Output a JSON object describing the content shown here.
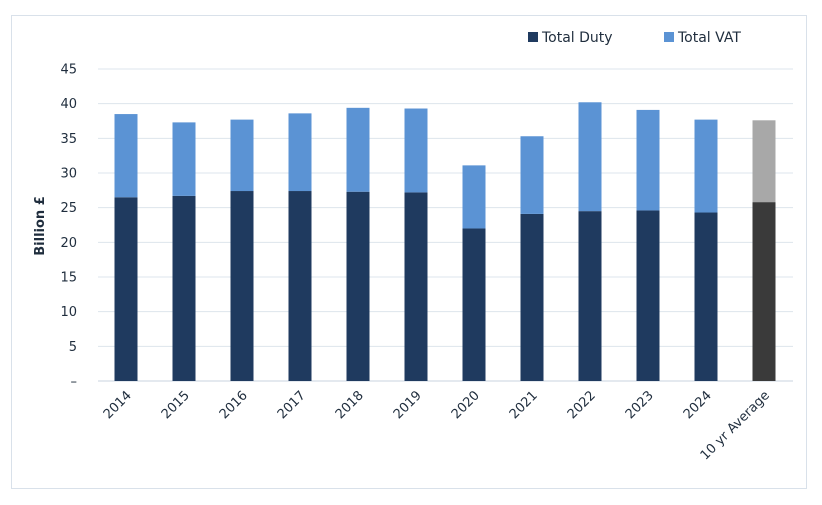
{
  "chart_data": {
    "type": "bar",
    "stacked": true,
    "ylabel": "Billion £",
    "ylim": [
      0,
      45
    ],
    "yticks": [
      "–",
      "5",
      "10",
      "15",
      "20",
      "25",
      "30",
      "35",
      "40",
      "45"
    ],
    "grid": true,
    "legend_position": "top-right",
    "categories": [
      "2014",
      "2015",
      "2016",
      "2017",
      "2018",
      "2019",
      "2020",
      "2021",
      "2022",
      "2023",
      "2024",
      "10 yr Average"
    ],
    "series": [
      {
        "name": "Total Duty",
        "color": "#1f3a5f",
        "values": [
          26.5,
          26.7,
          27.4,
          27.4,
          27.3,
          27.2,
          22.0,
          24.1,
          24.5,
          24.6,
          24.3,
          25.8
        ]
      },
      {
        "name": "Total VAT",
        "color": "#5b93d4",
        "values": [
          12.0,
          10.6,
          10.3,
          11.2,
          12.1,
          12.1,
          9.1,
          11.2,
          15.7,
          14.5,
          13.4,
          11.8
        ]
      }
    ],
    "highlight": {
      "category": "10 yr Average",
      "colors": [
        "#3a3a3a",
        "#a8a8a8"
      ]
    }
  }
}
